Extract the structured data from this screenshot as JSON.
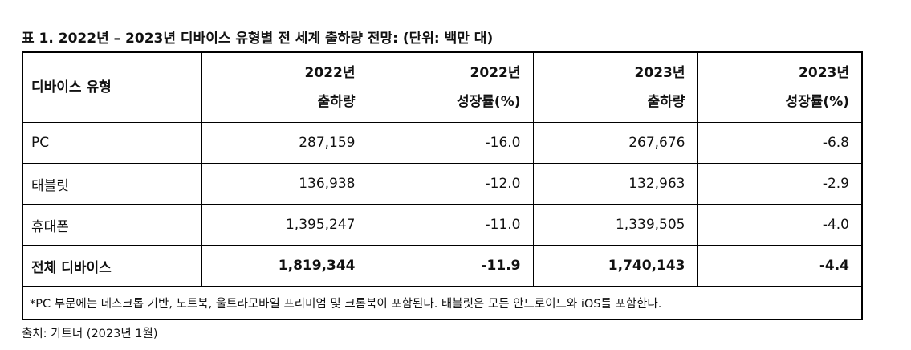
{
  "title": "표 1. 2022년 – 2023년 디바이스 유형별 전 세계 출하량 전망: (단위: 백만 대)",
  "table": {
    "header": [
      [
        "디바이스 유형"
      ],
      [
        "2022년",
        "출하량"
      ],
      [
        "2022년",
        "성장률(%)"
      ],
      [
        "2023년",
        "출하량"
      ],
      [
        "2023년",
        "성장률(%)"
      ]
    ],
    "rows": [
      [
        "PC",
        "287,159",
        "-16.0",
        "267,676",
        "-6.8"
      ],
      [
        "태블릿",
        "136,938",
        "-12.0",
        "132,963",
        "-2.9"
      ],
      [
        "휴대폰",
        "1,395,247",
        "-11.0",
        "1,339,505",
        "-4.0"
      ],
      [
        "전체 디바이스",
        "1,819,344",
        "-11.9",
        "1,740,143",
        "-4.4"
      ]
    ],
    "footnote": "*PC 부문에는 데스크톱 기반, 노트북, 울트라모바일 프리미엄 및 크롬북이 포함된다. 태블릿은 모든 안드로이드와 iOS를 포함한다."
  },
  "source": "출처: 가트너 (2023년 1월)"
}
